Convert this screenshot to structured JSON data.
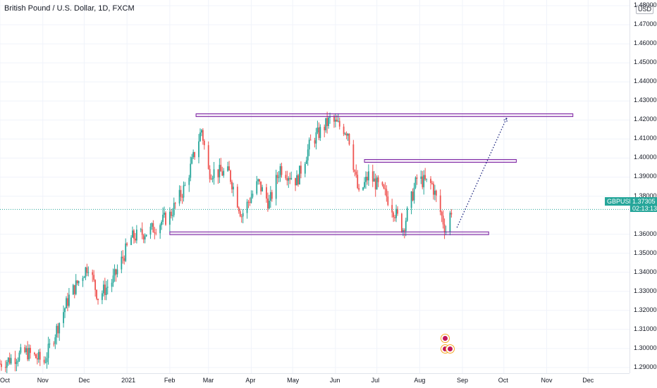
{
  "title": "British Pound / U.S. Dollar, 1D, FXCM",
  "currency": "USD",
  "symbol": "GBPUSD",
  "last_price": "1.37305",
  "countdown": "02:13:13",
  "colors": {
    "up": "#26a69a",
    "down": "#ef5350",
    "level": "#7b1fa2",
    "projection": "#1a237e",
    "grid": "#f0f3fa"
  },
  "y_ticks": [
    "1.48000",
    "1.47000",
    "1.46000",
    "1.45000",
    "1.44000",
    "1.43000",
    "1.42000",
    "1.41000",
    "1.40000",
    "1.39000",
    "1.38000",
    "1.36000",
    "1.35000",
    "1.34000",
    "1.33000",
    "1.32000",
    "1.31000",
    "1.30000",
    "1.29000"
  ],
  "x_ticks": [
    "Oct",
    "Nov",
    "Dec",
    "2021",
    "Feb",
    "Mar",
    "Apr",
    "May",
    "Jun",
    "Jul",
    "Aug",
    "Sep",
    "Oct",
    "Nov",
    "Dec"
  ],
  "chart_data": {
    "type": "candlestick",
    "title": "British Pound / U.S. Dollar, 1D, FXCM",
    "ylim": [
      1.287,
      1.483
    ],
    "y_scale": "linear",
    "grid": true,
    "xlim": [
      "2020-10-01",
      "2021-12-31"
    ],
    "last_price": 1.37305,
    "anchors": [
      {
        "date": "2020-10-01",
        "close": 1.292
      },
      {
        "date": "2020-10-20",
        "close": 1.298
      },
      {
        "date": "2020-11-02",
        "close": 1.293
      },
      {
        "date": "2020-11-20",
        "close": 1.327
      },
      {
        "date": "2020-12-04",
        "close": 1.344
      },
      {
        "date": "2020-12-11",
        "close": 1.327
      },
      {
        "date": "2020-12-22",
        "close": 1.336
      },
      {
        "date": "2021-01-04",
        "close": 1.358
      },
      {
        "date": "2021-01-18",
        "close": 1.362
      },
      {
        "date": "2021-02-01",
        "close": 1.37
      },
      {
        "date": "2021-02-12",
        "close": 1.385
      },
      {
        "date": "2021-02-24",
        "close": 1.415
      },
      {
        "date": "2021-03-01",
        "close": 1.393
      },
      {
        "date": "2021-03-16",
        "close": 1.392
      },
      {
        "date": "2021-03-25",
        "close": 1.37
      },
      {
        "date": "2021-04-06",
        "close": 1.387
      },
      {
        "date": "2021-04-14",
        "close": 1.376
      },
      {
        "date": "2021-04-22",
        "close": 1.395
      },
      {
        "date": "2021-05-04",
        "close": 1.388
      },
      {
        "date": "2021-05-14",
        "close": 1.408
      },
      {
        "date": "2021-05-28",
        "close": 1.42
      },
      {
        "date": "2021-06-10",
        "close": 1.414
      },
      {
        "date": "2021-06-18",
        "close": 1.38
      },
      {
        "date": "2021-06-25",
        "close": 1.391
      },
      {
        "date": "2021-07-08",
        "close": 1.38
      },
      {
        "date": "2021-07-20",
        "close": 1.363
      },
      {
        "date": "2021-07-30",
        "close": 1.389
      },
      {
        "date": "2021-08-10",
        "close": 1.386
      },
      {
        "date": "2021-08-20",
        "close": 1.362
      },
      {
        "date": "2021-08-24",
        "close": 1.373
      }
    ],
    "levels": [
      {
        "price": 1.4225,
        "from": "2021-02-20",
        "to": "2021-11-20"
      },
      {
        "price": 1.3985,
        "from": "2021-06-22",
        "to": "2021-10-10"
      },
      {
        "price": 1.3605,
        "from": "2021-02-01",
        "to": "2021-09-20"
      }
    ],
    "projection": {
      "from": {
        "date": "2021-08-28",
        "price": 1.3635
      },
      "to": {
        "date": "2021-10-03",
        "price": 1.421
      }
    }
  }
}
